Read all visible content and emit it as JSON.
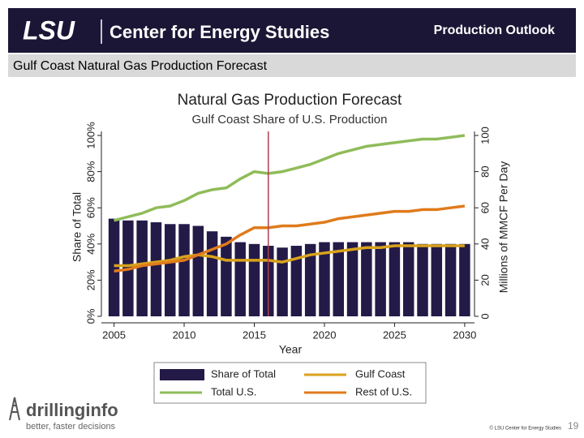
{
  "header": {
    "logo": "LSU",
    "center": "Center for Energy Studies",
    "section": "Production Outlook"
  },
  "slide_title": "Gulf Coast Natural Gas Production Forecast",
  "footer": {
    "brand": "drillinginfo",
    "tagline": "better, faster decisions",
    "copyright": "© LSU Center for Energy Studies",
    "page": "19"
  },
  "chart_data": {
    "type": "bar-line",
    "title": "Natural Gas Production Forecast",
    "subtitle": "Gulf Coast Share of U.S. Production",
    "x_label": "Year",
    "y_label": "Share of Total",
    "y2_label": "Millions of MMCF Per Day",
    "x": [
      2005,
      2006,
      2007,
      2008,
      2009,
      2010,
      2011,
      2012,
      2013,
      2014,
      2015,
      2016,
      2017,
      2018,
      2019,
      2020,
      2021,
      2022,
      2023,
      2024,
      2025,
      2026,
      2027,
      2028,
      2029,
      2030
    ],
    "xlim": [
      2004.1,
      2030.7
    ],
    "xticks": [
      2005,
      2010,
      2015,
      2020,
      2025,
      2030
    ],
    "ylim": [
      0,
      100
    ],
    "yticks": [
      {
        "value": 0,
        "label": "0%"
      },
      {
        "value": 20,
        "label": "20%"
      },
      {
        "value": 40,
        "label": "40%"
      },
      {
        "value": 60,
        "label": "60%"
      },
      {
        "value": 80,
        "label": "80%"
      },
      {
        "value": 100,
        "label": "100%"
      }
    ],
    "y2lim": [
      0,
      100
    ],
    "y2ticks": [
      0,
      20,
      40,
      60,
      80,
      100
    ],
    "reference_x": 2016,
    "series": [
      {
        "name": "Share of Total",
        "type": "bar",
        "color": "#241a47",
        "values": [
          54,
          53,
          53,
          52,
          51,
          51,
          50,
          47,
          44,
          41,
          40,
          39,
          38,
          39,
          40,
          41,
          41,
          41,
          41,
          41,
          41,
          41,
          40,
          40,
          40,
          40
        ]
      },
      {
        "name": "Gulf Coast",
        "type": "line",
        "axis": "y2",
        "color": "#d9a21b",
        "values": [
          28,
          28,
          29,
          30,
          31,
          33,
          34,
          33,
          31,
          31,
          31,
          31,
          30,
          32,
          34,
          35,
          36,
          37,
          38,
          38,
          39,
          39,
          39,
          39,
          39,
          39
        ]
      },
      {
        "name": "Total U.S.",
        "type": "line",
        "axis": "y2",
        "color": "#8fbc5a",
        "values": [
          53,
          55,
          57,
          60,
          61,
          64,
          68,
          70,
          71,
          76,
          80,
          79,
          80,
          82,
          84,
          87,
          90,
          92,
          94,
          95,
          96,
          97,
          98,
          98,
          99,
          100
        ]
      },
      {
        "name": "Rest of U.S.",
        "type": "line",
        "axis": "y2",
        "color": "#e07b1c",
        "values": [
          25,
          26,
          28,
          29,
          30,
          31,
          34,
          37,
          40,
          45,
          49,
          49,
          50,
          50,
          51,
          52,
          54,
          55,
          56,
          57,
          58,
          58,
          59,
          59,
          60,
          61
        ]
      }
    ]
  }
}
